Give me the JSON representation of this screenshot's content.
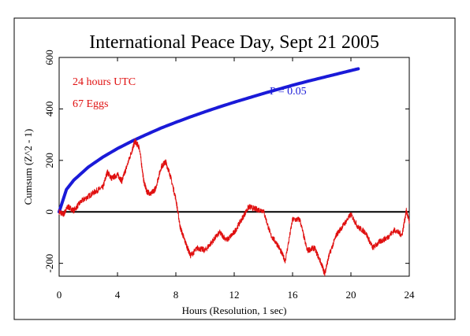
{
  "chart_data": {
    "type": "line",
    "title": "International Peace Day, Sept 21 2005",
    "xlabel": "Hours (Resolution, 1 sec)",
    "ylabel": "Cumsum (Z^2 - 1)",
    "xlim": [
      0,
      24
    ],
    "ylim": [
      -250,
      600
    ],
    "xticks": [
      0,
      4,
      8,
      12,
      16,
      20,
      24
    ],
    "yticks": [
      -200,
      0,
      200,
      400,
      600
    ],
    "grid": false,
    "annotations": {
      "period": "24 hours UTC",
      "eggs": "67 Eggs",
      "probability": "P = 0.05"
    },
    "series": [
      {
        "name": "P = 0.05",
        "color": "#1a1ad8",
        "x": [
          0,
          0.5,
          1,
          2,
          3,
          4,
          5,
          6,
          7,
          8,
          9,
          10,
          11,
          12,
          13,
          14,
          15,
          16,
          17,
          18,
          19,
          20,
          20.5
        ],
        "y": [
          0,
          87,
          123,
          174,
          213,
          246,
          275,
          301,
          326,
          348,
          369,
          389,
          408,
          426,
          443,
          460,
          476,
          492,
          507,
          521,
          535,
          549,
          556
        ]
      },
      {
        "name": "Cumsum",
        "color": "#e01010",
        "x": [
          0,
          0.3,
          0.6,
          1,
          1.5,
          2,
          2.5,
          3,
          3.3,
          3.6,
          4,
          4.3,
          4.6,
          5,
          5.2,
          5.5,
          5.8,
          6,
          6.3,
          6.6,
          7,
          7.3,
          7.6,
          8,
          8.3,
          8.6,
          9,
          9.5,
          10,
          10.5,
          11,
          11.5,
          12,
          12.5,
          13,
          13.5,
          14,
          14.5,
          15,
          15.5,
          16,
          16.5,
          17,
          17.5,
          18,
          18.2,
          18.5,
          19,
          19.5,
          20,
          20.5,
          21,
          21.5,
          22,
          22.5,
          23,
          23.5,
          23.8,
          24
        ],
        "y": [
          0,
          -10,
          20,
          5,
          40,
          60,
          80,
          95,
          155,
          130,
          145,
          120,
          170,
          240,
          275,
          250,
          120,
          80,
          70,
          90,
          175,
          195,
          145,
          50,
          -60,
          -110,
          -170,
          -140,
          -150,
          -115,
          -80,
          -110,
          -80,
          -30,
          20,
          10,
          5,
          -90,
          -130,
          -190,
          -30,
          -30,
          -150,
          -140,
          -205,
          -240,
          -170,
          -90,
          -50,
          -10,
          -60,
          -80,
          -140,
          -115,
          -100,
          -70,
          -90,
          5,
          -40
        ]
      }
    ]
  }
}
